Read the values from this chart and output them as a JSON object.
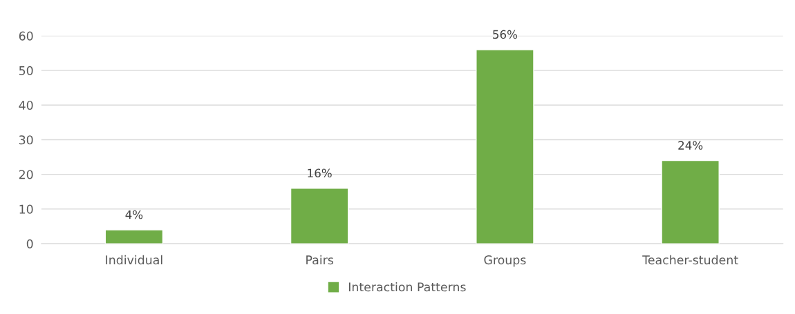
{
  "chart_data": {
    "type": "bar",
    "categories": [
      "Individual",
      "Pairs",
      "Groups",
      "Teacher-student"
    ],
    "series": [
      {
        "name": "Interaction Patterns",
        "color": "#70ad47",
        "values": [
          4,
          16,
          56,
          24
        ],
        "value_labels": [
          "4%",
          "16%",
          "56%",
          "24%"
        ]
      }
    ],
    "ylim": [
      0,
      60
    ],
    "yticks": [
      0,
      10,
      20,
      30,
      40,
      50,
      60
    ],
    "grid": "y",
    "legend": "bottom"
  }
}
